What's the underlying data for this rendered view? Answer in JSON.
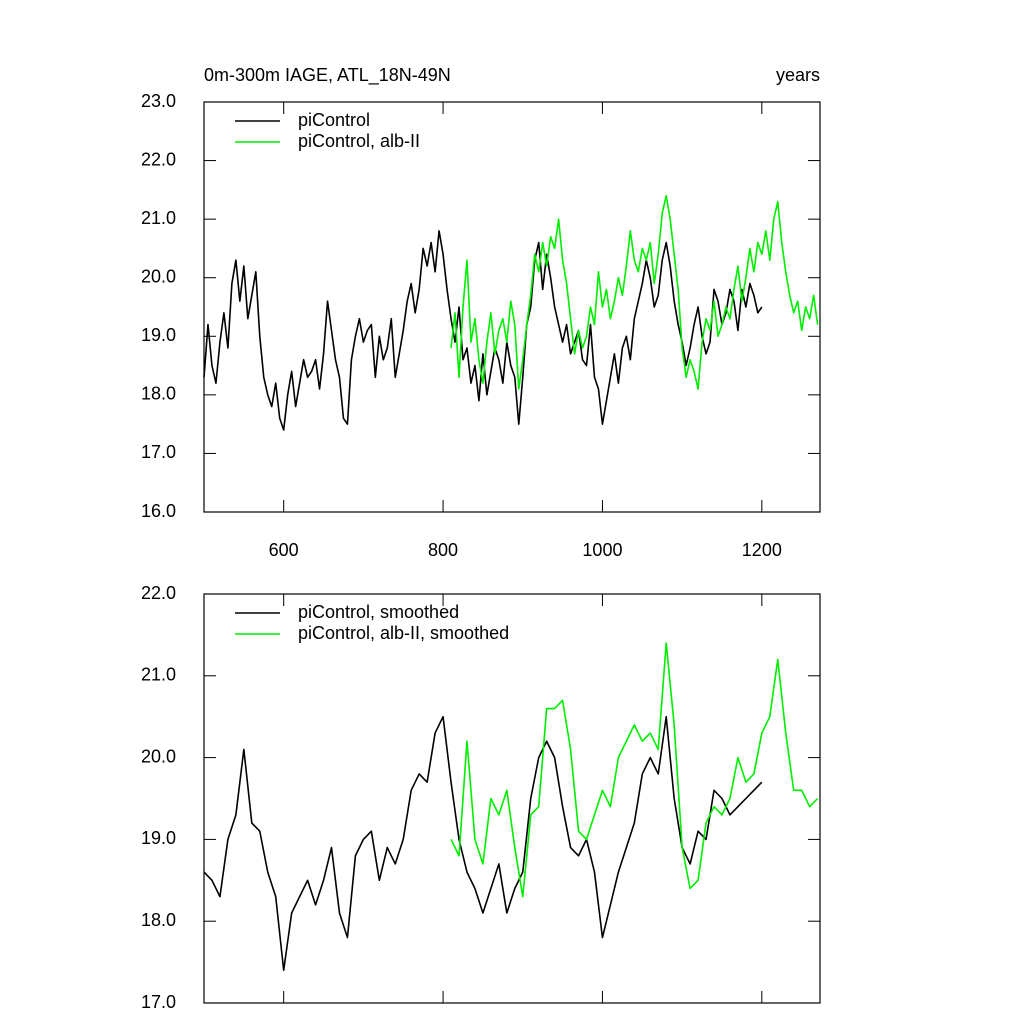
{
  "chart_data": [
    {
      "type": "line",
      "title": "0m-300m IAGE, ATL_18N-49N",
      "ylabel": "years",
      "xlim": [
        500,
        1273
      ],
      "xticks": [
        600,
        800,
        1000,
        1200
      ],
      "ylim": [
        16,
        23
      ],
      "yticks": [
        {
          "value": 16,
          "label": "16.0"
        },
        {
          "value": 17,
          "label": "17.0"
        },
        {
          "value": 18,
          "label": "18.0"
        },
        {
          "value": 19,
          "label": "19.0"
        },
        {
          "value": 20,
          "label": "20.0"
        },
        {
          "value": 21,
          "label": "21.0"
        },
        {
          "value": 22,
          "label": "22.0"
        },
        {
          "value": 23,
          "label": "23.0"
        }
      ],
      "legend": "upper left",
      "series": [
        {
          "name": "piControl",
          "color": "#000000",
          "x": [
            500,
            505,
            510,
            515,
            520,
            525,
            530,
            535,
            540,
            545,
            550,
            555,
            560,
            565,
            570,
            575,
            580,
            585,
            590,
            595,
            600,
            605,
            610,
            615,
            620,
            625,
            630,
            635,
            640,
            645,
            650,
            655,
            660,
            665,
            670,
            675,
            680,
            685,
            690,
            695,
            700,
            705,
            710,
            715,
            720,
            725,
            730,
            735,
            740,
            745,
            750,
            755,
            760,
            765,
            770,
            775,
            780,
            785,
            790,
            795,
            800,
            805,
            810,
            815,
            820,
            825,
            830,
            835,
            840,
            845,
            850,
            855,
            860,
            865,
            870,
            875,
            880,
            885,
            890,
            895,
            900,
            905,
            910,
            915,
            920,
            925,
            930,
            935,
            940,
            945,
            950,
            955,
            960,
            965,
            970,
            975,
            980,
            985,
            990,
            995,
            1000,
            1005,
            1010,
            1015,
            1020,
            1025,
            1030,
            1035,
            1040,
            1045,
            1050,
            1055,
            1060,
            1065,
            1070,
            1075,
            1080,
            1085,
            1090,
            1095,
            1100,
            1105,
            1110,
            1115,
            1120,
            1125,
            1130,
            1135,
            1140,
            1145,
            1150,
            1155,
            1160,
            1165,
            1170,
            1175,
            1180,
            1185,
            1190,
            1195,
            1200
          ],
          "values": [
            18.3,
            19.2,
            18.5,
            18.2,
            18.9,
            19.4,
            18.8,
            19.9,
            20.3,
            19.6,
            20.2,
            19.3,
            19.7,
            20.1,
            19.0,
            18.3,
            18.0,
            17.8,
            18.2,
            17.6,
            17.4,
            18.0,
            18.4,
            17.8,
            18.2,
            18.6,
            18.3,
            18.4,
            18.6,
            18.1,
            18.7,
            19.6,
            19.1,
            18.6,
            18.3,
            17.6,
            17.5,
            18.6,
            19.0,
            19.3,
            18.9,
            19.1,
            19.2,
            18.3,
            19.0,
            18.6,
            18.8,
            19.3,
            18.3,
            18.7,
            19.1,
            19.6,
            19.9,
            19.4,
            19.8,
            20.5,
            20.2,
            20.6,
            20.1,
            20.8,
            20.4,
            19.8,
            19.3,
            18.9,
            19.5,
            18.6,
            18.8,
            18.2,
            18.5,
            17.9,
            18.7,
            18.0,
            18.4,
            18.8,
            18.6,
            18.2,
            18.9,
            18.5,
            18.3,
            17.5,
            18.3,
            19.2,
            19.5,
            20.3,
            20.6,
            19.8,
            20.4,
            20.0,
            19.5,
            19.2,
            18.9,
            19.2,
            18.7,
            18.9,
            19.1,
            18.6,
            18.5,
            19.2,
            18.3,
            18.1,
            17.5,
            17.9,
            18.3,
            18.7,
            18.2,
            18.8,
            19.0,
            18.6,
            19.3,
            19.6,
            19.9,
            20.3,
            20.0,
            19.5,
            19.7,
            20.3,
            20.6,
            20.2,
            19.6,
            19.2,
            18.9,
            18.5,
            18.8,
            19.2,
            19.5,
            19.0,
            18.7,
            18.9,
            19.8,
            19.6,
            19.2,
            19.4,
            19.8,
            19.6,
            19.1,
            19.8,
            19.5,
            19.9,
            19.7,
            19.4,
            19.5
          ]
        },
        {
          "name": "piControl, alb-II",
          "color": "#00ee00",
          "x": [
            810,
            815,
            820,
            825,
            830,
            835,
            840,
            845,
            850,
            855,
            860,
            865,
            870,
            875,
            880,
            885,
            890,
            895,
            900,
            905,
            910,
            915,
            920,
            925,
            930,
            935,
            940,
            945,
            950,
            955,
            960,
            965,
            970,
            975,
            980,
            985,
            990,
            995,
            1000,
            1005,
            1010,
            1015,
            1020,
            1025,
            1030,
            1035,
            1040,
            1045,
            1050,
            1055,
            1060,
            1065,
            1070,
            1075,
            1080,
            1085,
            1090,
            1095,
            1100,
            1105,
            1110,
            1115,
            1120,
            1125,
            1130,
            1135,
            1140,
            1145,
            1150,
            1155,
            1160,
            1165,
            1170,
            1175,
            1180,
            1185,
            1190,
            1195,
            1200,
            1205,
            1210,
            1215,
            1220,
            1225,
            1230,
            1235,
            1240,
            1245,
            1250,
            1255,
            1260,
            1265,
            1270
          ],
          "values": [
            18.8,
            19.4,
            18.3,
            19.5,
            20.3,
            18.9,
            19.3,
            18.6,
            18.2,
            18.9,
            19.4,
            18.7,
            19.1,
            19.3,
            18.9,
            19.6,
            19.2,
            18.1,
            18.6,
            19.2,
            19.7,
            20.4,
            20.1,
            20.6,
            20.2,
            20.7,
            20.5,
            21.0,
            20.3,
            19.9,
            19.3,
            18.7,
            19.1,
            18.8,
            19.0,
            19.5,
            19.2,
            20.1,
            19.5,
            19.8,
            19.3,
            19.6,
            20.0,
            19.7,
            20.2,
            20.8,
            20.3,
            20.1,
            20.5,
            20.3,
            20.6,
            19.9,
            20.4,
            21.1,
            21.4,
            21.0,
            20.4,
            19.8,
            18.8,
            18.3,
            18.6,
            18.4,
            18.1,
            18.9,
            19.3,
            19.1,
            19.6,
            19.0,
            19.2,
            19.5,
            19.3,
            19.8,
            20.2,
            19.6,
            20.0,
            20.5,
            20.1,
            20.6,
            20.4,
            20.8,
            20.3,
            21.0,
            21.3,
            20.6,
            20.1,
            19.7,
            19.4,
            19.6,
            19.1,
            19.5,
            19.3,
            19.7,
            19.2
          ]
        }
      ]
    },
    {
      "type": "line",
      "xlim": [
        500,
        1273
      ],
      "xticks": [
        600,
        800,
        1000,
        1200
      ],
      "ylim": [
        17,
        22
      ],
      "yticks": [
        {
          "value": 17,
          "label": "17.0"
        },
        {
          "value": 18,
          "label": "18.0"
        },
        {
          "value": 19,
          "label": "19.0"
        },
        {
          "value": 20,
          "label": "20.0"
        },
        {
          "value": 21,
          "label": "21.0"
        },
        {
          "value": 22,
          "label": "22.0"
        }
      ],
      "legend": "upper left",
      "series": [
        {
          "name": "piControl, smoothed",
          "color": "#000000",
          "x": [
            500,
            510,
            520,
            530,
            540,
            550,
            560,
            570,
            580,
            590,
            600,
            610,
            620,
            630,
            640,
            650,
            660,
            670,
            680,
            690,
            700,
            710,
            720,
            730,
            740,
            750,
            760,
            770,
            780,
            790,
            800,
            810,
            820,
            830,
            840,
            850,
            860,
            870,
            880,
            890,
            900,
            910,
            920,
            930,
            940,
            950,
            960,
            970,
            980,
            990,
            1000,
            1010,
            1020,
            1030,
            1040,
            1050,
            1060,
            1070,
            1080,
            1090,
            1100,
            1110,
            1120,
            1130,
            1140,
            1150,
            1160,
            1170,
            1180,
            1190,
            1200
          ],
          "values": [
            18.6,
            18.5,
            18.3,
            19.0,
            19.3,
            20.1,
            19.2,
            19.1,
            18.6,
            18.3,
            17.4,
            18.1,
            18.3,
            18.5,
            18.2,
            18.5,
            18.9,
            18.1,
            17.8,
            18.8,
            19.0,
            19.1,
            18.5,
            18.9,
            18.7,
            19.0,
            19.6,
            19.8,
            19.7,
            20.3,
            20.5,
            19.7,
            19.0,
            18.6,
            18.4,
            18.1,
            18.4,
            18.7,
            18.1,
            18.4,
            18.6,
            19.5,
            20.0,
            20.2,
            20.0,
            19.4,
            18.9,
            18.8,
            19.0,
            18.6,
            17.8,
            18.2,
            18.6,
            18.9,
            19.2,
            19.8,
            20.0,
            19.8,
            20.5,
            19.5,
            18.9,
            18.7,
            19.1,
            19.0,
            19.6,
            19.5,
            19.3,
            19.4,
            19.5,
            19.6,
            19.7
          ]
        },
        {
          "name": "piControl, alb-II, smoothed",
          "color": "#00ee00",
          "x": [
            810,
            820,
            830,
            840,
            850,
            860,
            870,
            880,
            890,
            900,
            910,
            920,
            930,
            940,
            950,
            960,
            970,
            980,
            990,
            1000,
            1010,
            1020,
            1030,
            1040,
            1050,
            1060,
            1070,
            1080,
            1090,
            1100,
            1110,
            1120,
            1130,
            1140,
            1150,
            1160,
            1170,
            1180,
            1190,
            1200,
            1210,
            1220,
            1230,
            1240,
            1250,
            1260,
            1270
          ],
          "values": [
            19.0,
            18.8,
            20.2,
            19.0,
            18.7,
            19.5,
            19.3,
            19.6,
            18.9,
            18.3,
            19.3,
            19.4,
            20.6,
            20.6,
            20.7,
            20.1,
            19.1,
            19.0,
            19.3,
            19.6,
            19.4,
            20.0,
            20.2,
            20.4,
            20.2,
            20.3,
            20.1,
            21.4,
            20.4,
            18.9,
            18.4,
            18.5,
            19.2,
            19.4,
            19.3,
            19.5,
            20.0,
            19.7,
            19.8,
            20.3,
            20.5,
            21.2,
            20.3,
            19.6,
            19.6,
            19.4,
            19.5
          ]
        }
      ]
    }
  ]
}
